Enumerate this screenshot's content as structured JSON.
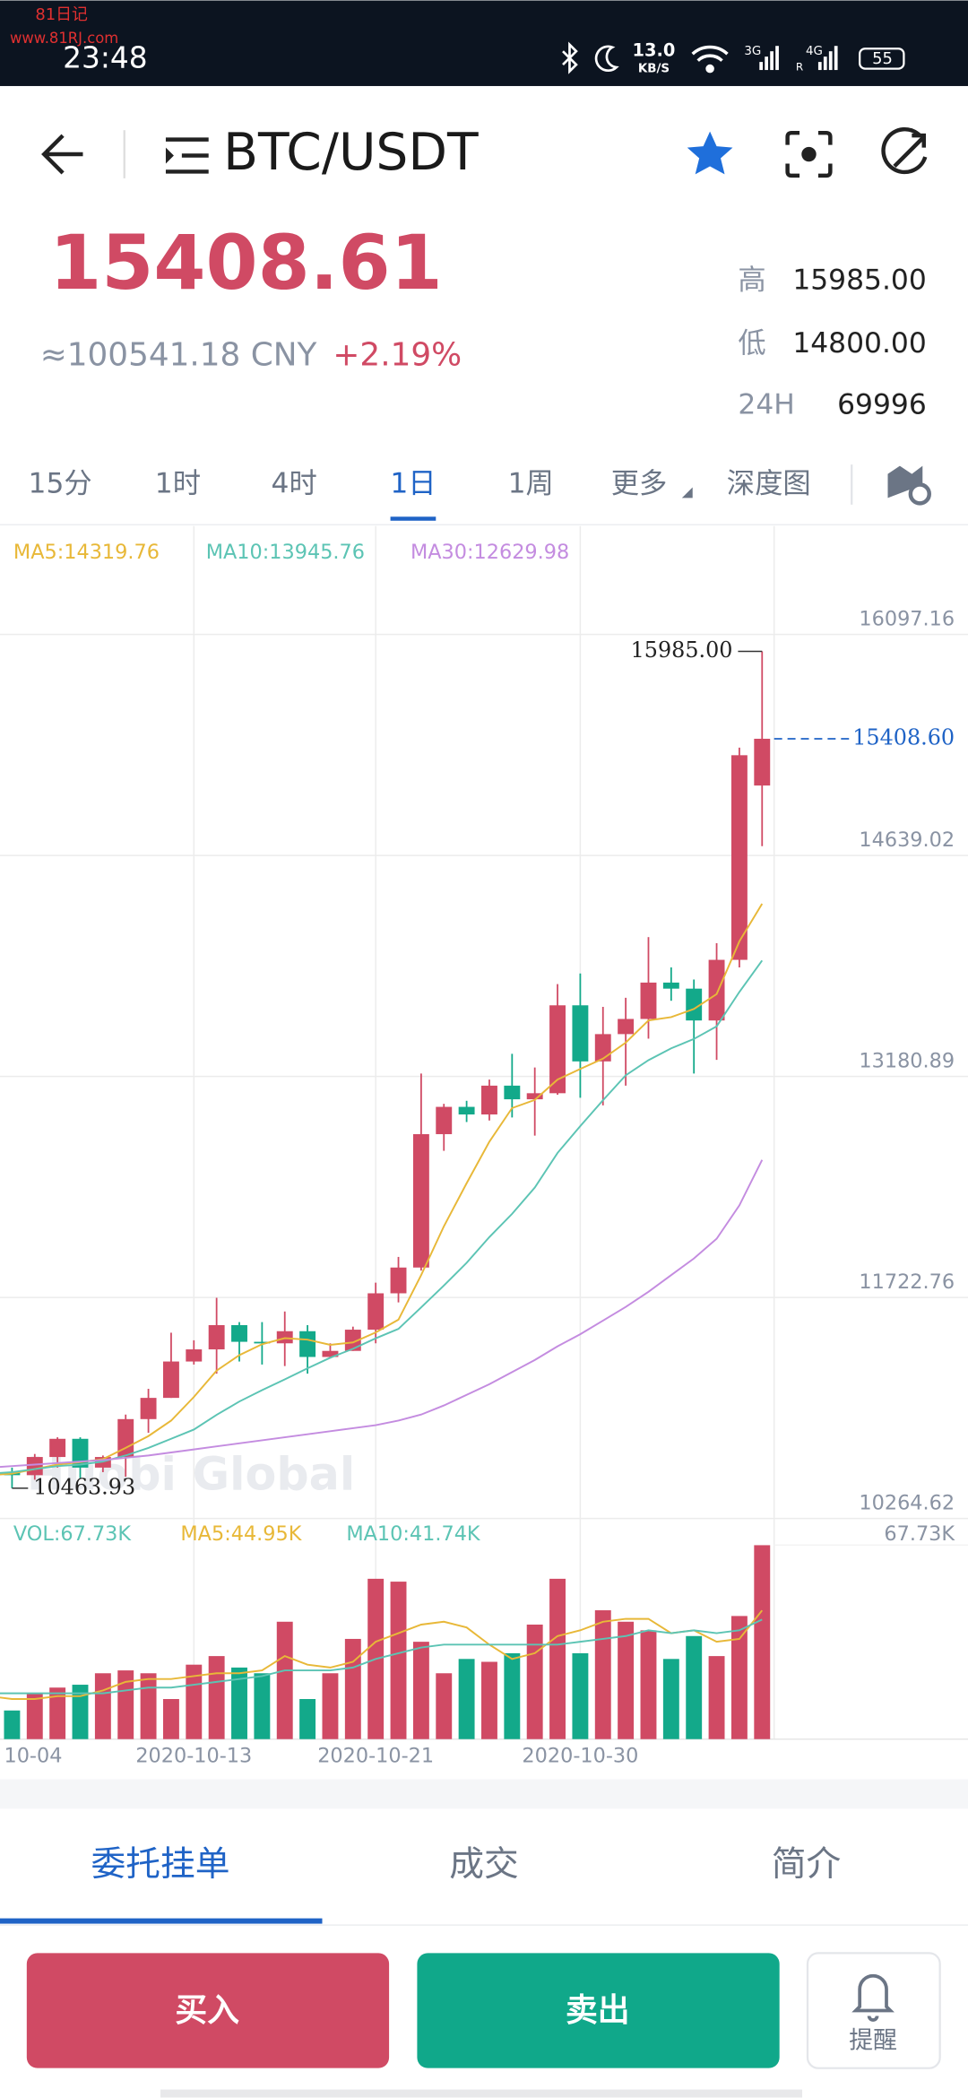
{
  "status_bar": {
    "watermark_top": "81日记",
    "watermark_url": "www.81RJ.com",
    "time": "23:48",
    "net_speed": "13.0",
    "net_unit": "KB/S",
    "sim1": "3G",
    "sim2": "4G",
    "sim2_roaming": "R",
    "battery": "55"
  },
  "header": {
    "title": "BTC/USDT"
  },
  "ticker": {
    "price": "15408.61",
    "cny": "≈100541.18 CNY",
    "change": "+2.19%",
    "stats": [
      {
        "label": "高",
        "value": "15985.00"
      },
      {
        "label": "低",
        "value": "14800.00"
      },
      {
        "label": "24H",
        "value": "69996"
      }
    ]
  },
  "intervals": {
    "items": [
      "15分",
      "1时",
      "4时",
      "1日",
      "1周",
      "更多",
      "深度图"
    ],
    "active": 3
  },
  "watermark": "Huobi Global",
  "chart_data": [
    {
      "type": "candlestick",
      "up_color": "#d04a64",
      "down_color": "#13a98a",
      "open": [
        10620,
        10570,
        10550,
        10670,
        10790,
        10600,
        10670,
        10920,
        11060,
        11300,
        11380,
        11540,
        11430,
        11420,
        11500,
        11330,
        11370,
        11510,
        11750,
        11920,
        12800,
        12980,
        12930,
        13120,
        13030,
        13070,
        13650,
        13280,
        13460,
        13560,
        13800,
        13760,
        13550,
        13950,
        15100
      ],
      "high": [
        10660,
        10600,
        10690,
        10800,
        10800,
        10680,
        10950,
        11120,
        11490,
        11440,
        11720,
        11560,
        11560,
        11630,
        11540,
        11420,
        11530,
        11820,
        11990,
        13200,
        13000,
        13020,
        13160,
        13330,
        13240,
        13790,
        13860,
        13640,
        13700,
        14100,
        13900,
        13820,
        14060,
        15350,
        15985
      ],
      "low": [
        10500,
        10463.93,
        10520,
        10600,
        10530,
        10570,
        10540,
        10830,
        11060,
        11280,
        11220,
        11300,
        11280,
        11270,
        11220,
        11320,
        11370,
        11420,
        11690,
        11900,
        12690,
        12880,
        12890,
        12910,
        12790,
        13060,
        13040,
        12990,
        13120,
        13430,
        13680,
        13200,
        13290,
        13900,
        14700
      ],
      "close": [
        10570,
        10550,
        10670,
        10790,
        10600,
        10670,
        10920,
        11060,
        11300,
        11380,
        11540,
        11430,
        11420,
        11500,
        11330,
        11370,
        11510,
        11750,
        11920,
        12800,
        12980,
        12930,
        13120,
        13030,
        13070,
        13650,
        13280,
        13460,
        13560,
        13800,
        13760,
        13550,
        13950,
        15300,
        15408.6
      ],
      "ma": [
        {
          "label": "MA5:14319.76",
          "color": "#e8b838",
          "values": [
            10550,
            10560,
            10590,
            10620,
            10636,
            10656,
            10730,
            10808,
            10910,
            11066,
            11240,
            11342,
            11414,
            11454,
            11444,
            11410,
            11426,
            11492,
            11576,
            11870,
            12192,
            12476,
            12750,
            12972,
            13026,
            13160,
            13230,
            13298,
            13404,
            13550,
            13572,
            13626,
            13724,
            14072,
            14319.76
          ]
        },
        {
          "label": "MA10:13945.76",
          "color": "#5cc4b4",
          "values": [
            10560,
            10570,
            10590,
            10610,
            10620,
            10640,
            10680,
            10730,
            10790,
            10851,
            10948,
            11036,
            11111,
            11182,
            11255,
            11325,
            11384,
            11453,
            11515,
            11657,
            11801,
            11951,
            12121,
            12274,
            12448,
            12676,
            12853,
            13024,
            13188,
            13288,
            13366,
            13428,
            13511,
            13738,
            13945.76
          ]
        },
        {
          "label": "MA30:12629.98",
          "color": "#c48ce0",
          "values": [
            10600,
            10610,
            10620,
            10630,
            10640,
            10650,
            10665,
            10680,
            10700,
            10720,
            10740,
            10760,
            10780,
            10800,
            10820,
            10840,
            10860,
            10880,
            10910,
            10950,
            11010,
            11080,
            11150,
            11230,
            11310,
            11400,
            11480,
            11570,
            11660,
            11760,
            11870,
            11980,
            12110,
            12330,
            12629.98
          ]
        }
      ],
      "ylim": [
        10264.62,
        16097.16
      ],
      "yticks": [
        16097.16,
        14639.02,
        13180.89,
        11722.76,
        10264.62
      ],
      "grid": true,
      "current_price": {
        "value": 15408.6,
        "label": "15408.60"
      },
      "high_label": "15985.00",
      "low_label": "10463.93"
    },
    {
      "type": "bar",
      "legend": "VOL:67.73K",
      "categories": [
        "10-04",
        null,
        null,
        null,
        null,
        null,
        null,
        null,
        null,
        "2020-10-13",
        null,
        null,
        null,
        null,
        null,
        null,
        null,
        "2020-10-21",
        null,
        null,
        null,
        null,
        null,
        null,
        null,
        null,
        "2020-10-30",
        null,
        null,
        null,
        null,
        null,
        null,
        null,
        null
      ],
      "values": [
        13,
        10,
        16,
        18,
        19,
        23,
        24,
        23,
        14,
        26,
        29,
        25,
        23,
        41,
        14,
        23,
        35,
        56,
        55,
        34,
        23,
        28,
        27,
        30,
        40,
        56,
        30,
        45,
        41,
        38,
        28,
        36,
        29,
        43,
        67.73
      ],
      "ma": [
        {
          "label": "MA5:44.95K",
          "color": "#e8b838",
          "values": [
            15,
            14,
            14,
            15,
            15,
            17,
            20,
            21,
            21,
            22,
            23,
            23,
            24,
            29,
            26,
            25,
            27,
            34,
            37,
            40,
            41,
            39,
            33,
            28,
            30,
            36,
            38,
            41,
            42,
            42,
            37,
            38,
            34,
            35,
            44.95
          ]
        },
        {
          "label": "MA10:41.74K",
          "color": "#5cc4b4",
          "values": [
            16,
            16,
            16,
            16,
            16,
            16,
            17,
            18,
            18,
            19,
            20,
            21,
            22,
            24,
            24,
            24,
            25,
            28,
            30,
            32,
            33,
            33,
            33,
            33,
            33,
            33,
            34,
            35,
            36,
            38,
            37,
            38,
            37,
            38,
            41.74
          ]
        }
      ],
      "ylim": [
        0,
        67.73
      ],
      "yticks": [
        {
          "value": 67.73,
          "label": "67.73K"
        }
      ]
    }
  ],
  "bottom_tabs": {
    "items": [
      "委托挂单",
      "成交",
      "简介"
    ],
    "active": 0
  },
  "actions": {
    "buy": "买入",
    "sell": "卖出",
    "remind": "提醒"
  }
}
